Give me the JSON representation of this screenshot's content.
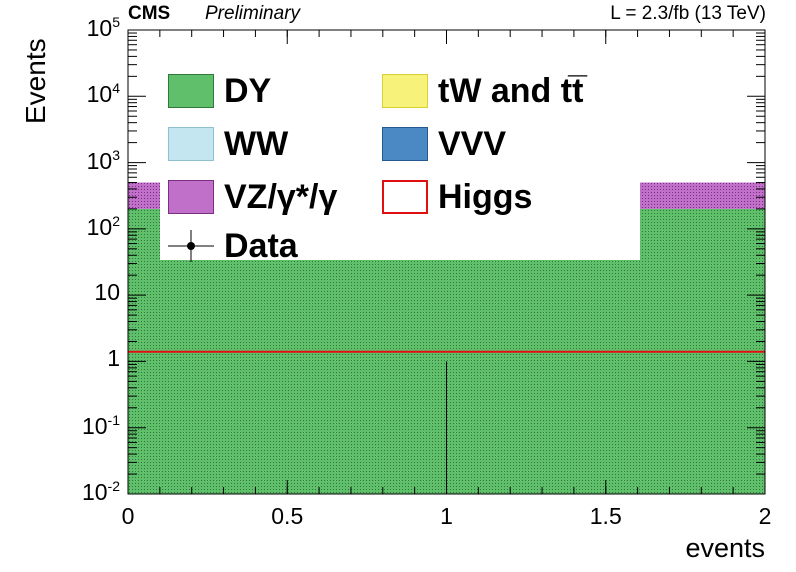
{
  "header": {
    "experiment": "CMS",
    "status": "Preliminary",
    "luminosity": "L = 2.3/fb (13 TeV)"
  },
  "chart_data": {
    "type": "bar",
    "subtype": "stacked-histogram",
    "xlabel": "events",
    "ylabel": "Events",
    "yscale": "log",
    "xlim": [
      0,
      2
    ],
    "ylim": [
      0.01,
      100000
    ],
    "x_ticks": [
      "0",
      "0.5",
      "1",
      "1.5",
      "2"
    ],
    "y_ticks": [
      {
        "base": "10",
        "exp": "-2"
      },
      {
        "base": "10",
        "exp": "-1"
      },
      {
        "base": "1",
        "exp": ""
      },
      {
        "base": "10",
        "exp": ""
      },
      {
        "base": "10",
        "exp": "2"
      },
      {
        "base": "10",
        "exp": "3"
      },
      {
        "base": "10",
        "exp": "4"
      },
      {
        "base": "10",
        "exp": "5"
      }
    ],
    "bins": [
      [
        0,
        2
      ]
    ],
    "stack": [
      {
        "name": "DY",
        "values": [
          200
        ],
        "color": "#5fbf6a",
        "hatch": true
      },
      {
        "name": "tW and tt̅",
        "values": [
          0
        ],
        "color": "#f6f27a"
      },
      {
        "name": "WW",
        "values": [
          0
        ],
        "color": "#c3e6f0"
      },
      {
        "name": "VVV",
        "values": [
          0
        ],
        "color": "#4b89c4"
      },
      {
        "name": "VZ/γ*/γ",
        "values": [
          300
        ],
        "color": "#c070c8"
      }
    ],
    "signal": {
      "name": "Higgs",
      "values": [
        1.4
      ],
      "color": "#e01010"
    },
    "data": {
      "name": "Data",
      "x": [
        1.0
      ],
      "y": [
        0.01
      ],
      "yerr_high": [
        1.0
      ]
    },
    "legend": {
      "position": "top",
      "columns": 2,
      "entries": [
        "DY",
        "tW and tt̅",
        "WW",
        "VVV",
        "VZ/γ*/γ",
        "Higgs",
        "Data"
      ]
    },
    "grid": false
  }
}
